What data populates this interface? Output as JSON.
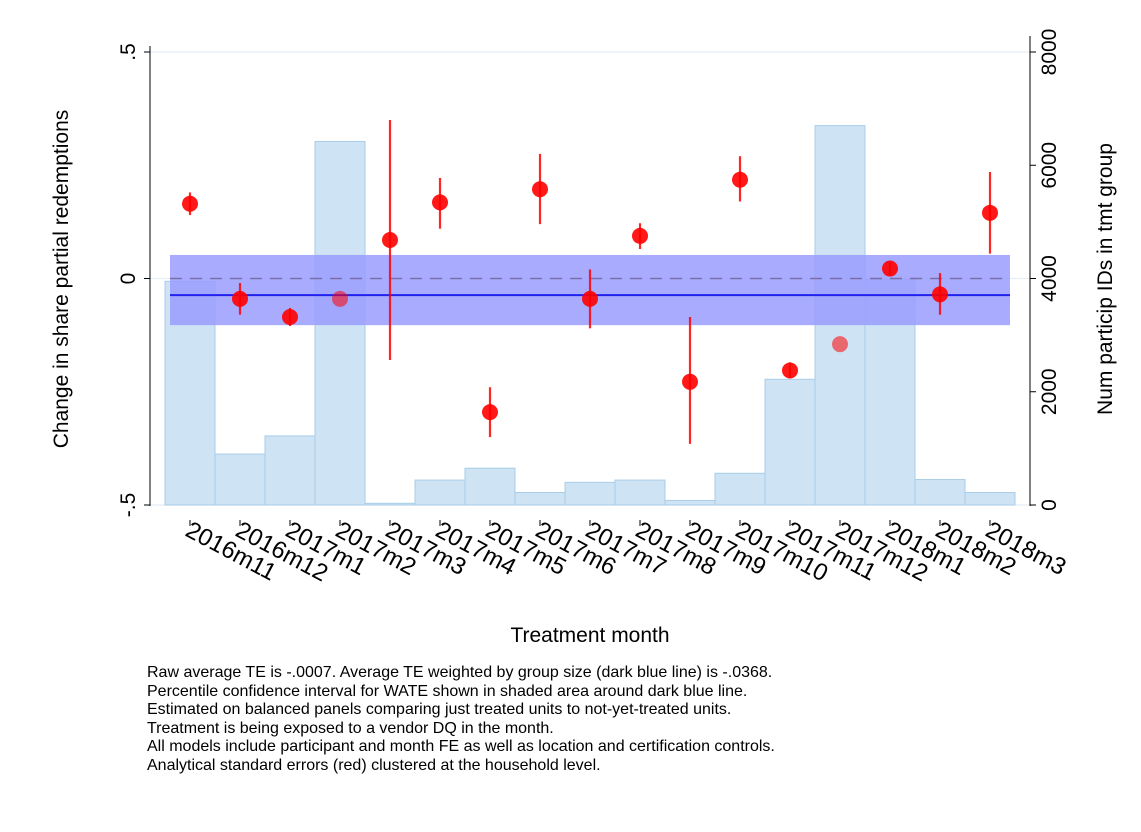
{
  "chart_data": {
    "type": "bar",
    "xlabel": "Treatment month",
    "ylabel": "Change in share partial redemptions",
    "y2label": "Num particip IDs in tmt group",
    "categories": [
      "2016m11",
      "2016m12",
      "2017m1",
      "2017m2",
      "2017m3",
      "2017m4",
      "2017m5",
      "2017m6",
      "2017m7",
      "2017m8",
      "2017m9",
      "2017m10",
      "2017m11",
      "2017m12",
      "2018m1",
      "2018m2",
      "2018m3"
    ],
    "ylim": [
      -0.5,
      0.5
    ],
    "y_ticks": [
      -0.5,
      0,
      0.5
    ],
    "y_tick_labels": [
      "-.5",
      "0",
      ".5"
    ],
    "y2lim": [
      0,
      8000
    ],
    "y2_ticks": [
      0,
      2000,
      4000,
      6000,
      8000
    ],
    "y2_tick_labels": [
      "0",
      "2000",
      "4000",
      "6000",
      "8000"
    ],
    "series": [
      {
        "type": "bar",
        "axis": "right",
        "color": "#c6dff2",
        "values": [
          3950,
          900,
          1220,
          6420,
          30,
          440,
          650,
          220,
          400,
          440,
          80,
          560,
          2220,
          6700,
          3980,
          450,
          220
        ]
      },
      {
        "type": "point_with_ci",
        "axis": "left",
        "color": "#ff0000",
        "values": [
          0.165,
          -0.045,
          -0.085,
          -0.045,
          0.085,
          0.168,
          -0.295,
          0.197,
          -0.045,
          0.094,
          -0.228,
          0.218,
          -0.203,
          -0.145,
          0.022,
          -0.035,
          0.145
        ],
        "ci_low": [
          0.14,
          -0.08,
          -0.105,
          null,
          -0.18,
          0.11,
          -0.35,
          0.12,
          -0.11,
          0.065,
          -0.365,
          0.17,
          -0.22,
          null,
          0.008,
          -0.08,
          0.055
        ],
        "ci_high": [
          0.19,
          -0.01,
          -0.065,
          null,
          0.35,
          0.222,
          -0.24,
          0.275,
          0.02,
          0.122,
          -0.085,
          0.27,
          -0.185,
          null,
          0.036,
          0.012,
          0.235
        ]
      }
    ],
    "reference_lines": {
      "zero_dashed": 0,
      "weighted_average": -0.0368,
      "weighted_average_ci": [
        -0.103,
        0.052
      ]
    },
    "colors": {
      "bars": "#c6dff2",
      "bar_edge": "#a9cde8",
      "points": "#ff0000",
      "wate_band": "#9a9cff",
      "wate_line": "#2222ee",
      "grid": "#e4eef6"
    },
    "grid": true,
    "legend": "none"
  },
  "notes": [
    "Raw average TE is -.0007. Average TE weighted by group size (dark blue line) is -.0368.",
    "Percentile confidence interval for WATE shown in shaded area around dark blue line.",
    "Estimated on balanced panels comparing just treated units to not-yet-treated units.",
    "Treatment is being exposed to a vendor DQ in the month.",
    "All models include participant and month FE as well as location and certification controls.",
    "Analytical standard errors (red) clustered at the household level."
  ]
}
